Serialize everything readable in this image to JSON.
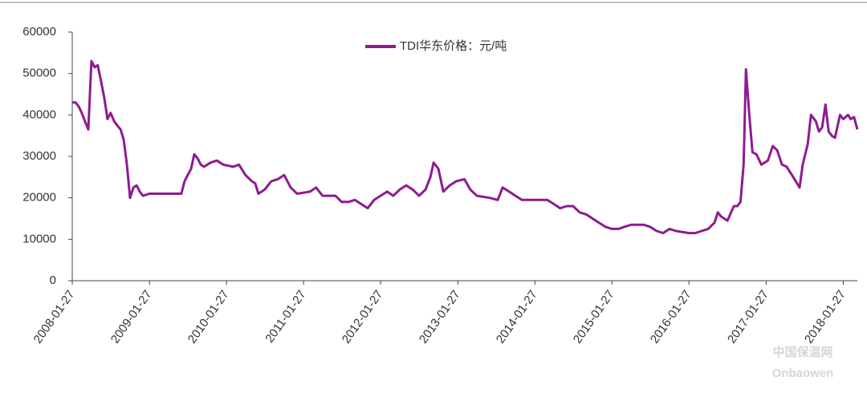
{
  "chart_data": {
    "type": "line",
    "series": [
      {
        "name": "TDI华东价格：元/吨",
        "color": "#8e1b90",
        "x": [
          "2008-01-27",
          "2008-02-12",
          "2008-02-27",
          "2008-03-12",
          "2008-03-27",
          "2008-04-12",
          "2008-04-27",
          "2008-05-12",
          "2008-05-27",
          "2008-06-12",
          "2008-06-27",
          "2008-07-12",
          "2008-07-27",
          "2008-08-12",
          "2008-08-27",
          "2008-09-12",
          "2008-09-27",
          "2008-10-12",
          "2008-10-27",
          "2008-11-12",
          "2008-11-27",
          "2008-12-12",
          "2008-12-27",
          "2009-01-27",
          "2009-04-27",
          "2009-06-27",
          "2009-07-12",
          "2009-07-27",
          "2009-08-12",
          "2009-08-27",
          "2009-09-12",
          "2009-09-27",
          "2009-10-12",
          "2009-11-12",
          "2009-12-12",
          "2010-01-12",
          "2010-02-27",
          "2010-03-27",
          "2010-04-27",
          "2010-05-27",
          "2010-06-12",
          "2010-06-27",
          "2010-07-27",
          "2010-08-27",
          "2010-09-27",
          "2010-10-27",
          "2010-11-27",
          "2010-12-27",
          "2011-02-27",
          "2011-03-27",
          "2011-04-27",
          "2011-06-27",
          "2011-07-27",
          "2011-08-27",
          "2011-09-27",
          "2011-10-27",
          "2011-11-27",
          "2011-12-27",
          "2012-01-27",
          "2012-02-27",
          "2012-03-27",
          "2012-04-27",
          "2012-05-27",
          "2012-06-27",
          "2012-07-27",
          "2012-08-27",
          "2012-09-19",
          "2012-10-04",
          "2012-10-27",
          "2012-11-19",
          "2012-12-19",
          "2013-01-19",
          "2013-02-27",
          "2013-03-27",
          "2013-04-27",
          "2013-06-27",
          "2013-08-04",
          "2013-08-27",
          "2013-09-27",
          "2013-10-27",
          "2013-11-27",
          "2014-03-27",
          "2014-04-27",
          "2014-05-27",
          "2014-06-27",
          "2014-07-27",
          "2014-08-27",
          "2014-09-27",
          "2014-10-27",
          "2014-11-27",
          "2014-12-27",
          "2015-01-27",
          "2015-02-27",
          "2015-03-27",
          "2015-04-27",
          "2015-06-27",
          "2015-07-27",
          "2015-08-27",
          "2015-09-27",
          "2015-10-27",
          "2015-11-27",
          "2016-01-27",
          "2016-02-27",
          "2016-03-27",
          "2016-04-27",
          "2016-05-27",
          "2016-06-12",
          "2016-06-27",
          "2016-07-27",
          "2016-08-27",
          "2016-09-12",
          "2016-09-27",
          "2016-10-12",
          "2016-10-23",
          "2016-11-08",
          "2016-11-23",
          "2016-12-12",
          "2017-01-04",
          "2017-02-04",
          "2017-02-27",
          "2017-03-20",
          "2017-04-12",
          "2017-05-04",
          "2017-06-04",
          "2017-07-04",
          "2017-07-19",
          "2017-08-12",
          "2017-08-27",
          "2017-09-19",
          "2017-10-04",
          "2017-10-19",
          "2017-11-04",
          "2017-11-19",
          "2017-12-04",
          "2017-12-19",
          "2018-01-12",
          "2018-01-27",
          "2018-02-19",
          "2018-03-04",
          "2018-03-19",
          "2018-04-04"
        ],
        "values": [
          43000,
          43000,
          42000,
          40500,
          38500,
          36500,
          53000,
          51500,
          52000,
          48000,
          44000,
          39000,
          40500,
          38500,
          37500,
          36500,
          34000,
          28000,
          20000,
          22500,
          23000,
          21500,
          20500,
          21000,
          21000,
          21000,
          24000,
          25500,
          27000,
          30500,
          29500,
          28000,
          27500,
          28500,
          29000,
          28000,
          27500,
          28000,
          25500,
          24000,
          23500,
          21000,
          22000,
          24000,
          24500,
          25500,
          22500,
          21000,
          21500,
          22500,
          20500,
          20500,
          19000,
          19000,
          19500,
          18500,
          17500,
          19500,
          20500,
          21500,
          20500,
          22000,
          23000,
          22000,
          20500,
          22000,
          25000,
          28500,
          27000,
          21500,
          23000,
          24000,
          24500,
          22000,
          20500,
          20000,
          19500,
          22500,
          21500,
          20500,
          19500,
          19500,
          18500,
          17500,
          18000,
          18000,
          16500,
          16000,
          15000,
          14000,
          13000,
          12500,
          12500,
          13000,
          13500,
          13500,
          13000,
          12000,
          11500,
          12500,
          12000,
          11500,
          11500,
          12000,
          12500,
          14000,
          16500,
          15500,
          14500,
          18000,
          18000,
          19000,
          28000,
          51000,
          40000,
          31000,
          30500,
          28000,
          29000,
          32500,
          31500,
          28000,
          27500,
          25000,
          22500,
          28000,
          33000,
          40000,
          38500,
          36000,
          37000,
          42500,
          36000,
          35000,
          34500,
          40000,
          39000,
          40000,
          39000,
          39500,
          36500
        ]
      }
    ],
    "xlim": [
      "2008-01-27",
      "2018-04-04"
    ],
    "xticks": [
      "2008-01-27",
      "2009-01-27",
      "2010-01-27",
      "2011-01-27",
      "2012-01-27",
      "2013-01-27",
      "2014-01-27",
      "2015-01-27",
      "2016-01-27",
      "2017-01-27",
      "2018-01-27"
    ],
    "ylim": [
      0,
      60000
    ],
    "yticks": [
      0,
      10000,
      20000,
      30000,
      40000,
      50000,
      60000
    ],
    "grid": false,
    "legend": "top"
  },
  "watermark": [
    "中国保温网",
    "Onbaowen"
  ]
}
